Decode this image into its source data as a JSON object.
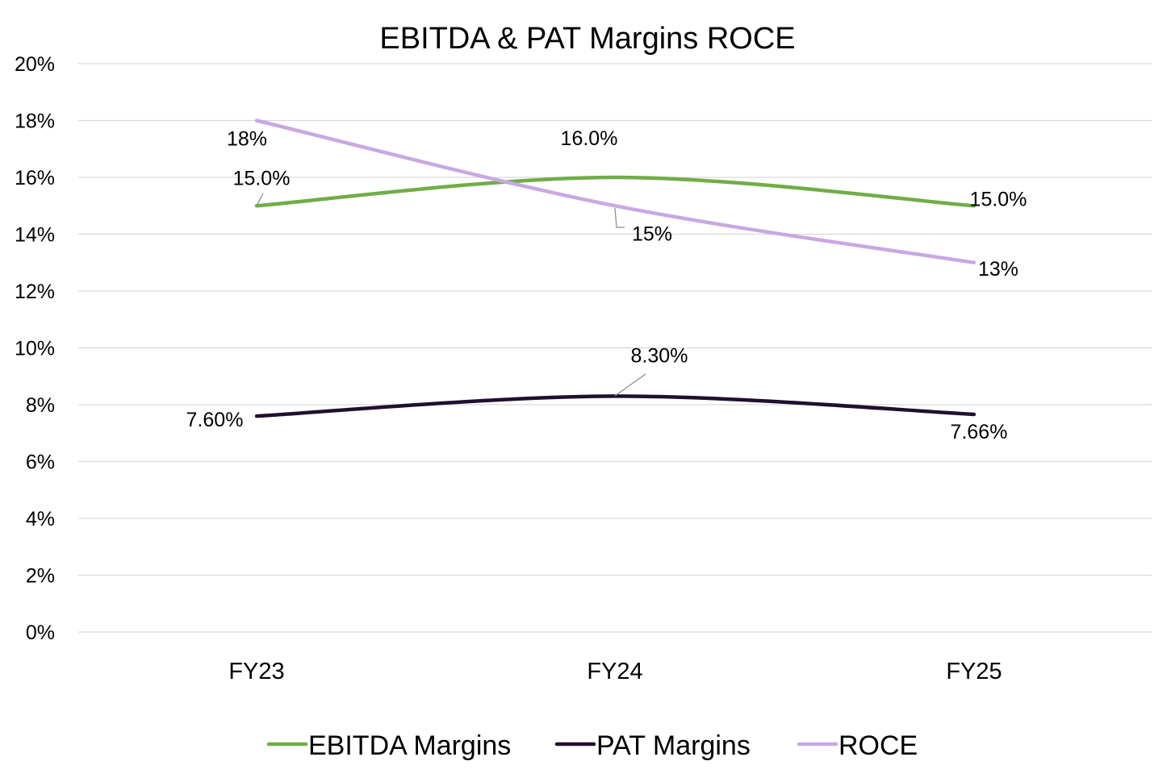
{
  "chart_data": {
    "type": "line",
    "title": "EBITDA & PAT Margins ROCE",
    "categories": [
      "FY23",
      "FY24",
      "FY25"
    ],
    "y_ticks": [
      "0%",
      "2%",
      "4%",
      "6%",
      "8%",
      "10%",
      "12%",
      "14%",
      "16%",
      "18%",
      "20%"
    ],
    "ylim": [
      0,
      20
    ],
    "grid": true,
    "legend_position": "bottom",
    "series": [
      {
        "name": "EBITDA Margins",
        "color": "#70ad47",
        "values": [
          15.0,
          16.0,
          15.0
        ],
        "labels": [
          "15.0%",
          "16.0%",
          "15.0%"
        ]
      },
      {
        "name": "PAT Margins",
        "color": "#20102e",
        "values": [
          7.6,
          8.3,
          7.66
        ],
        "labels": [
          "7.60%",
          "8.30%",
          "7.66%"
        ]
      },
      {
        "name": "ROCE",
        "color": "#c8a8e2",
        "values": [
          18,
          15,
          13
        ],
        "labels": [
          "18%",
          "15%",
          "13%"
        ]
      }
    ]
  }
}
